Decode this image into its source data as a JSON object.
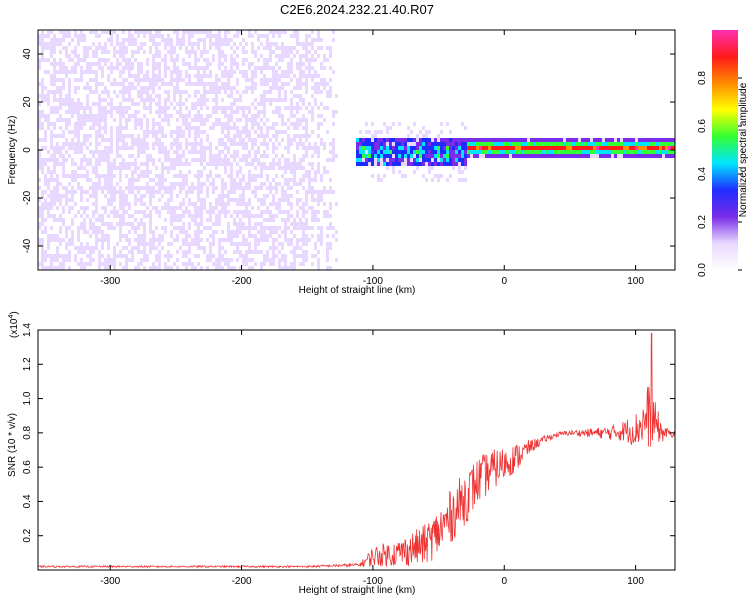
{
  "title": "C2E6.2024.232.21.40.R07",
  "chart_data": [
    {
      "type": "heatmap",
      "name": "spectrogram",
      "xlabel": "Height of straight line (km)",
      "ylabel": "Frequency (Hz)",
      "xlim": [
        -355,
        130
      ],
      "ylim": [
        -50,
        50
      ],
      "x_ticks": [
        -300,
        -200,
        -100,
        0,
        100
      ],
      "y_ticks": [
        -40,
        -20,
        0,
        20,
        40
      ],
      "colorbar": {
        "label": "Normalized spectral amplitude",
        "range": [
          0,
          1
        ],
        "ticks": [
          "0.0",
          "0.2",
          "0.4",
          "0.6",
          "0.8"
        ],
        "colors": [
          "#ffffff",
          "#e8d8ff",
          "#7a2ce8",
          "#1e2dff",
          "#00e5ff",
          "#33ff33",
          "#ffff00",
          "#ff8c00",
          "#ff1a1a",
          "#ff2fb0"
        ]
      },
      "regions": [
        {
          "x": [
            -355,
            -115
          ],
          "description_level": 0.12,
          "spread_hz": [
            -50,
            50
          ]
        },
        {
          "x": [
            -115,
            -30
          ],
          "level": 0.35,
          "spread_hz": [
            -6,
            6
          ]
        },
        {
          "x": [
            -30,
            130
          ],
          "level": 0.85,
          "center_hz": 1.5,
          "spread_hz": [
            -2,
            3
          ]
        }
      ]
    },
    {
      "type": "line",
      "name": "snr",
      "xlabel": "Height of straight line (km)",
      "ylabel": "SNR (10 * v/v)",
      "multiplier": "(x10",
      "multiplier_exp": "4",
      "multiplier_close": ")",
      "xlim": [
        -355,
        130
      ],
      "ylim": [
        0,
        1.4
      ],
      "x_ticks": [
        -300,
        -200,
        -100,
        0,
        100
      ],
      "y_ticks": [
        "0.2",
        "0.4",
        "0.6",
        "0.8",
        "1.0",
        "1.2",
        "1.4"
      ],
      "color": "#ee3333",
      "series": [
        {
          "x": [
            -355,
            -250,
            -150,
            -110,
            -100,
            -80,
            -60,
            -50,
            -40,
            -30,
            -20,
            -10,
            0,
            10,
            20,
            30,
            40,
            50,
            60,
            70,
            80,
            90,
            100,
            105,
            110,
            115,
            120,
            125,
            130
          ],
          "y": [
            0.02,
            0.02,
            0.02,
            0.03,
            0.08,
            0.1,
            0.15,
            0.22,
            0.32,
            0.42,
            0.52,
            0.58,
            0.62,
            0.66,
            0.72,
            0.76,
            0.79,
            0.8,
            0.8,
            0.8,
            0.8,
            0.81,
            0.82,
            0.85,
            0.9,
            0.86,
            0.8,
            0.8,
            0.79
          ],
          "noise": [
            0.005,
            0.005,
            0.005,
            0.01,
            0.06,
            0.08,
            0.12,
            0.14,
            0.16,
            0.16,
            0.14,
            0.12,
            0.1,
            0.08,
            0.04,
            0.02,
            0.015,
            0.015,
            0.02,
            0.03,
            0.04,
            0.06,
            0.1,
            0.12,
            0.2,
            0.12,
            0.06,
            0.02,
            0.02
          ]
        }
      ],
      "peak": {
        "x": 112,
        "y": 1.38
      }
    }
  ]
}
